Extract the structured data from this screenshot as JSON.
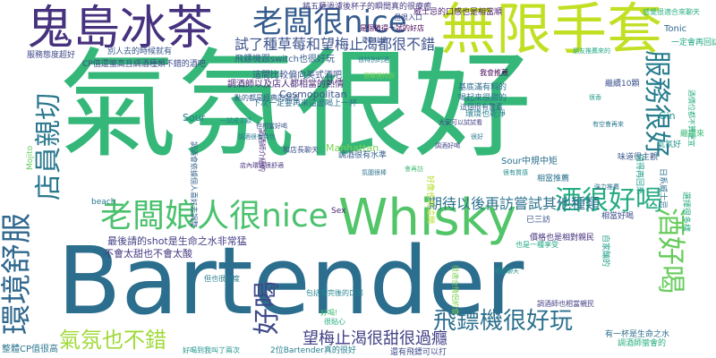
{
  "cloud": {
    "words": [
      {
        "text": "Bartender",
        "color": "#2c6e8e"
      },
      {
        "text": "氣氛很好",
        "color": "#35b779"
      },
      {
        "text": "鬼島冰茶",
        "color": "#46327e"
      },
      {
        "text": "無限手套",
        "color": "#c2df23"
      },
      {
        "text": "Whisky",
        "color": "#52c569"
      },
      {
        "text": "老闆很nice",
        "color": "#365c8d"
      },
      {
        "text": "老闆娘人很nice",
        "color": "#4ac16d"
      },
      {
        "text": "服務很好",
        "color": "#287d8e"
      },
      {
        "text": "環境舒服",
        "color": "#31688e"
      },
      {
        "text": "店員親切",
        "color": "#2a788e"
      },
      {
        "text": "酒很好喝",
        "color": "#25ac82"
      },
      {
        "text": "酒好喝",
        "color": "#67cc5c"
      },
      {
        "text": "好喝",
        "color": "#3e4a89"
      },
      {
        "text": "氣氛也不錯",
        "color": "#a0da39"
      },
      {
        "text": "飛鏢機很好玩",
        "color": "#2d708e"
      },
      {
        "text": "望梅止渴很甜很過癮",
        "color": "#424086"
      },
      {
        "text": "試了種草莓和望梅止渴都很不錯",
        "color": "#3b528b"
      },
      {
        "text": "期待以後再訪嘗試其他種類",
        "color": "#2c728e"
      },
      {
        "text": "Cosmopolitan",
        "color": "#3b528b"
      },
      {
        "text": "Manhattan",
        "color": "#7ad151"
      },
      {
        "text": "Sour",
        "color": "#2a788e"
      },
      {
        "text": "Gin",
        "color": "#21918c"
      },
      {
        "text": "Tonic",
        "color": "#31688e"
      },
      {
        "text": "Sex",
        "color": "#482576"
      },
      {
        "text": "beach",
        "color": "#2a788e"
      },
      {
        "text": "Mojito",
        "color": "#67cc5c"
      },
      {
        "text": "Sour中規中矩",
        "color": "#2d708e"
      },
      {
        "text": "一定會再回訪",
        "color": "#22a884"
      },
      {
        "text": "酒價位都不算便宜",
        "color": "#27ad81"
      },
      {
        "text": "最後請的shot是生命之水非常猛",
        "color": "#433e85"
      },
      {
        "text": "不會太甜也不會太酸",
        "color": "#453781"
      },
      {
        "text": "別人去的時候就有",
        "color": "#38598c"
      },
      {
        "text": "CP值還蠻高且調酒種類不錯的酒吧",
        "color": "#3e4989"
      },
      {
        "text": "服務態度超好",
        "color": "#3f4889"
      },
      {
        "text": "下次一定要再來這邊喝上一杯",
        "color": "#2e6f8e"
      },
      {
        "text": "調酒師以及店人都相當的熱情",
        "color": "#482475"
      },
      {
        "text": "飛鏢機跟switch也很好玩",
        "color": "#365c8d"
      },
      {
        "text": "將五種過濾後杯子的瞬間真的很療癒",
        "color": "#443a83"
      },
      {
        "text": "感覺很適合來聊天",
        "color": "#29af7f"
      },
      {
        "text": "調酒會依據個人喜好去調整",
        "color": "#34608d"
      },
      {
        "text": "自家釀的",
        "color": "#1fa088"
      },
      {
        "text": "價格也是相對親民",
        "color": "#46327e"
      },
      {
        "text": "有一杯是生命之水",
        "color": "#2e6e8e"
      },
      {
        "text": "調酒師也相當親民",
        "color": "#433d84"
      },
      {
        "text": "還有飛鏢可以打",
        "color": "#3d4e8a"
      },
      {
        "text": "2位Bartender真的很好",
        "color": "#277f8e"
      },
      {
        "text": "好喝到我叫了兩次",
        "color": "#1f948c"
      },
      {
        "text": "但也很適度",
        "color": "#287c8e"
      },
      {
        "text": "包括喝完後的口感",
        "color": "#25848e"
      },
      {
        "text": "很適合情侶約會",
        "color": "#7ad151"
      },
      {
        "text": "整體CP值很高",
        "color": "#2a768e"
      },
      {
        "text": "是個值得一試的好店",
        "color": "#440154"
      },
      {
        "text": "調酒師蠻會的",
        "color": "#29af7f"
      },
      {
        "text": "好像也就這間",
        "color": "#b5de2b"
      },
      {
        "text": "調酒師介紹的",
        "color": "#482878"
      },
      {
        "text": "調酒很有水準",
        "color": "#355f8d"
      },
      {
        "text": "基底滿有料的",
        "color": "#2f6c8e"
      },
      {
        "text": "繼續來",
        "color": "#3aba76"
      },
      {
        "text": "環境也乾淨",
        "color": "#287d8e"
      },
      {
        "text": "選擇很多樣",
        "color": "#25ab82"
      },
      {
        "text": "氣氛好",
        "color": "#20928c"
      },
      {
        "text": "味道很主觀",
        "color": "#38588c"
      },
      {
        "text": "和店長聊天",
        "color": "#3b528b"
      },
      {
        "text": "相當推薦",
        "color": "#2c738e"
      },
      {
        "text": "已三訪",
        "color": "#39568c"
      },
      {
        "text": "日系威士忌",
        "color": "#2d708e"
      },
      {
        "text": "值得再回來",
        "color": "#1f9f88"
      },
      {
        "text": "喝起來很甜的",
        "color": "#2e6f8e"
      },
      {
        "text": "這個很有驚喜",
        "color": "#32648e"
      },
      {
        "text": "點的都是經典的調酒",
        "color": "#355e8d"
      },
      {
        "text": "這間比較偏向美式酒吧",
        "color": "#3b528b"
      },
      {
        "text": "但相當好喝",
        "color": "#3b528b"
      },
      {
        "text": "也是一種享受",
        "color": "#22a785"
      },
      {
        "text": "大家可以試試看",
        "color": "#424186"
      },
      {
        "text": "威士忌的口感也是相當順",
        "color": "#481d6f"
      },
      {
        "text": "但很入口",
        "color": "#3e4a89"
      },
      {
        "text": "很特別的酒",
        "color": "#287c8e"
      },
      {
        "text": "相當好喝",
        "color": "#3d4e8a"
      },
      {
        "text": "我會推薦",
        "color": "#440154"
      },
      {
        "text": "繼續10顆",
        "color": "#3b518b"
      },
      {
        "text": "很貼心",
        "color": "#25ac82"
      },
      {
        "text": "好喝!",
        "color": "#3fbc73"
      },
      {
        "text": "很香",
        "color": "#1f9e89"
      },
      {
        "text": "很好",
        "color": "#2a788e"
      },
      {
        "text": "酒單很特別",
        "color": "#7ad151"
      },
      {
        "text": "調酒很有特色",
        "color": "#2a778e"
      },
      {
        "text": "強力推薦",
        "color": "#2e6d8e"
      },
      {
        "text": "有空會再來",
        "color": "#29798e"
      },
      {
        "text": "適合聊天",
        "color": "#21918c"
      },
      {
        "text": "喜歡這裡",
        "color": "#3b528b"
      },
      {
        "text": "店內環境很舒適",
        "color": "#472f7d"
      },
      {
        "text": "調酒好喝",
        "color": "#414487"
      },
      {
        "text": "一試成主顧",
        "color": "#25848e"
      },
      {
        "text": "朋友推薦來的",
        "color": "#22a884"
      },
      {
        "text": "氛圍很棒",
        "color": "#2c738e"
      },
      {
        "text": "很有質感",
        "color": "#23898e"
      },
      {
        "text": "會再訪",
        "color": "#3fbc73"
      }
    ]
  }
}
